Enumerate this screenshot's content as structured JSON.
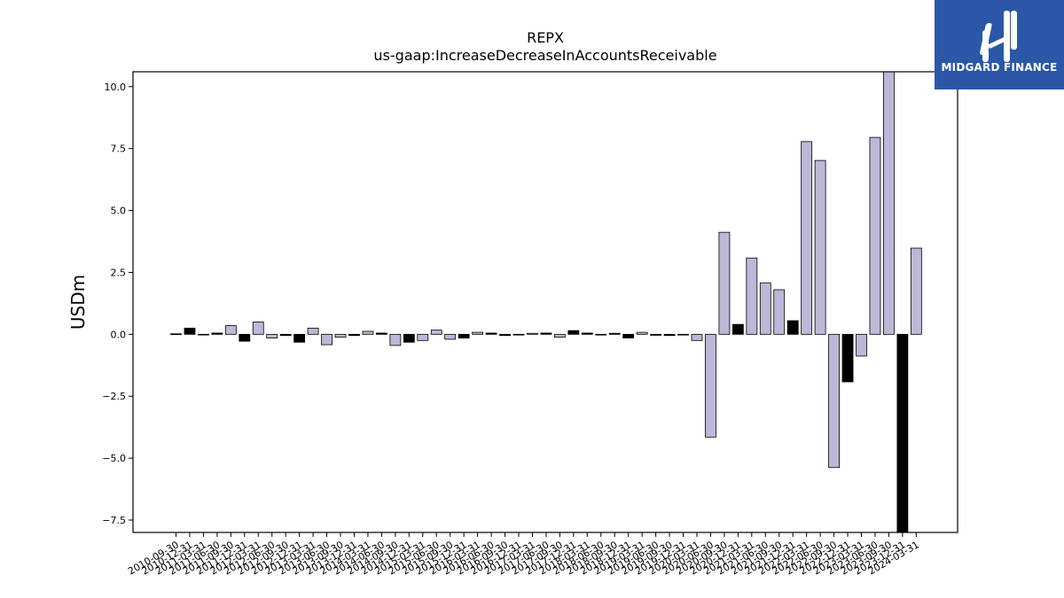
{
  "chart_data": {
    "type": "bar",
    "title": "REPX",
    "subtitle": "us-gaap:IncreaseDecreaseInAccountsReceivable",
    "xlabel": "",
    "ylabel": "USDm",
    "ylim": [
      -8.0,
      10.6
    ],
    "yticks": [
      -7.5,
      -5.0,
      -2.5,
      0.0,
      2.5,
      5.0,
      7.5,
      10.0
    ],
    "ytick_labels": [
      "−7.5",
      "−5.0",
      "−2.5",
      "0.0",
      "2.5",
      "5.0",
      "7.5",
      "10.0"
    ],
    "grid": false,
    "colors": {
      "q": "#bcb8d8",
      "fy": "#000000",
      "edge": "#000000"
    },
    "series_kind_note_hidden": "",
    "categories": [
      "2010-09-30",
      "2010-12-31",
      "2011-03-31",
      "2011-06-30",
      "2011-09-30",
      "2011-12-31",
      "2012-03-31",
      "2012-06-30",
      "2012-09-30",
      "2012-12-31",
      "2013-03-31",
      "2013-06-30",
      "2013-09-30",
      "2013-12-31",
      "2014-03-31",
      "2014-06-30",
      "2014-09-30",
      "2014-12-31",
      "2015-03-31",
      "2015-06-30",
      "2015-09-30",
      "2015-12-31",
      "2016-03-31",
      "2016-06-30",
      "2016-09-30",
      "2016-12-31",
      "2017-03-31",
      "2017-06-30",
      "2017-09-30",
      "2017-12-31",
      "2018-03-31",
      "2018-06-30",
      "2018-09-30",
      "2018-12-31",
      "2019-03-31",
      "2019-06-30",
      "2019-09-30",
      "2019-12-31",
      "2020-03-31",
      "2020-06-30",
      "2020-09-30",
      "2020-12-31",
      "2021-03-31",
      "2021-06-30",
      "2021-09-30",
      "2021-12-31",
      "2022-03-31",
      "2022-06-30",
      "2022-09-30",
      "2022-12-31",
      "2023-03-31",
      "2023-06-30",
      "2023-09-30",
      "2023-12-31",
      "2024-03-31"
    ],
    "values": [
      0.02,
      0.25,
      -0.02,
      0.05,
      0.35,
      -0.28,
      0.5,
      -0.15,
      -0.05,
      -0.32,
      0.25,
      -0.42,
      -0.12,
      -0.05,
      0.12,
      0.05,
      -0.45,
      -0.32,
      -0.25,
      0.17,
      -0.2,
      -0.15,
      0.08,
      0.05,
      -0.05,
      -0.03,
      0.04,
      0.05,
      -0.12,
      0.15,
      0.05,
      -0.03,
      0.04,
      -0.15,
      0.08,
      -0.04,
      -0.05,
      -0.03,
      -0.25,
      -4.15,
      4.12,
      0.4,
      3.08,
      2.08,
      1.8,
      0.55,
      7.78,
      7.02,
      -5.38,
      -1.92,
      -0.88,
      7.95,
      10.6,
      -8.0,
      3.48
    ],
    "bar_color_keys": [
      "q",
      "fy",
      "q",
      "fy",
      "q",
      "fy",
      "q",
      "q",
      "fy",
      "fy",
      "q",
      "q",
      "q",
      "fy",
      "q",
      "fy",
      "q",
      "fy",
      "q",
      "q",
      "q",
      "fy",
      "q",
      "fy",
      "fy",
      "fy",
      "q",
      "fy",
      "q",
      "fy",
      "fy",
      "fy",
      "fy",
      "fy",
      "q",
      "fy",
      "fy",
      "q",
      "q",
      "q",
      "q",
      "fy",
      "q",
      "q",
      "q",
      "fy",
      "q",
      "q",
      "q",
      "fy",
      "q",
      "q",
      "q",
      "fy",
      "q"
    ]
  },
  "logo": {
    "text": "MIDGARD FINANCE",
    "icon": "midgard-logo-icon",
    "background": "#2c57a8"
  }
}
